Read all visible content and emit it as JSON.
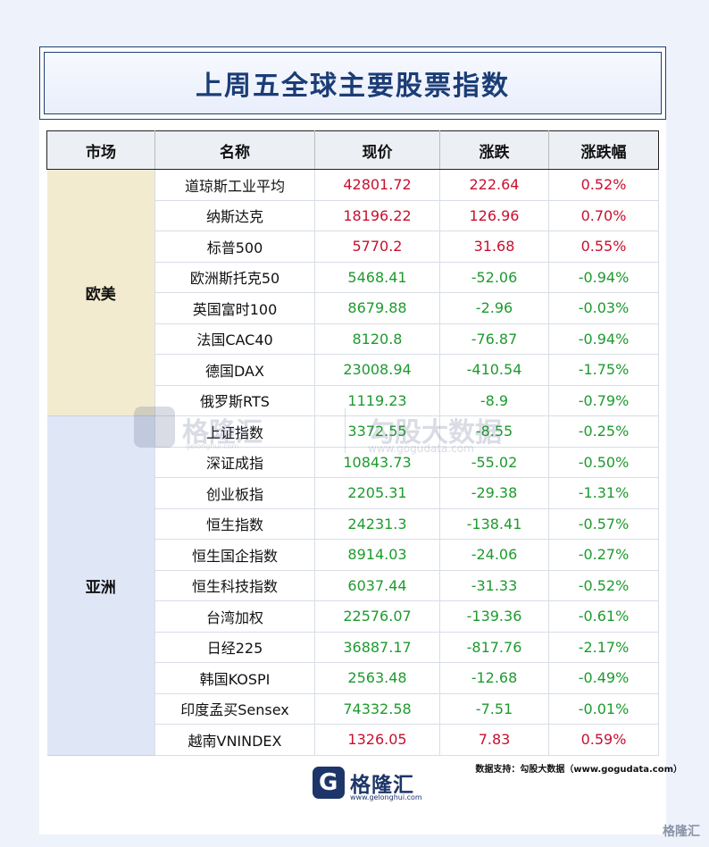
{
  "title": "上周五全球主要股票指数",
  "headers": [
    "市场",
    "名称",
    "现价",
    "涨跌",
    "涨跌幅"
  ],
  "regions": [
    {
      "name": "欧美",
      "color": "#f3ebcf",
      "rows": [
        {
          "name": "道琼斯工业平均",
          "price": "42801.72",
          "change": "222.64",
          "pct": "0.52%",
          "dir": "up"
        },
        {
          "name": "纳斯达克",
          "price": "18196.22",
          "change": "126.96",
          "pct": "0.70%",
          "dir": "up"
        },
        {
          "name": "标普500",
          "price": "5770.2",
          "change": "31.68",
          "pct": "0.55%",
          "dir": "up"
        },
        {
          "name": "欧洲斯托克50",
          "price": "5468.41",
          "change": "-52.06",
          "pct": "-0.94%",
          "dir": "down"
        },
        {
          "name": "英国富时100",
          "price": "8679.88",
          "change": "-2.96",
          "pct": "-0.03%",
          "dir": "down"
        },
        {
          "name": "法国CAC40",
          "price": "8120.8",
          "change": "-76.87",
          "pct": "-0.94%",
          "dir": "down"
        },
        {
          "name": "德国DAX",
          "price": "23008.94",
          "change": "-410.54",
          "pct": "-1.75%",
          "dir": "down"
        },
        {
          "name": "俄罗斯RTS",
          "price": "1119.23",
          "change": "-8.9",
          "pct": "-0.79%",
          "dir": "down"
        }
      ]
    },
    {
      "name": "亚洲",
      "color": "#dfe6f6",
      "rows": [
        {
          "name": "上证指数",
          "price": "3372.55",
          "change": "-8.55",
          "pct": "-0.25%",
          "dir": "down"
        },
        {
          "name": "深证成指",
          "price": "10843.73",
          "change": "-55.02",
          "pct": "-0.50%",
          "dir": "down"
        },
        {
          "name": "创业板指",
          "price": "2205.31",
          "change": "-29.38",
          "pct": "-1.31%",
          "dir": "down"
        },
        {
          "name": "恒生指数",
          "price": "24231.3",
          "change": "-138.41",
          "pct": "-0.57%",
          "dir": "down"
        },
        {
          "name": "恒生国企指数",
          "price": "8914.03",
          "change": "-24.06",
          "pct": "-0.27%",
          "dir": "down"
        },
        {
          "name": "恒生科技指数",
          "price": "6037.44",
          "change": "-31.33",
          "pct": "-0.52%",
          "dir": "down"
        },
        {
          "name": "台湾加权",
          "price": "22576.07",
          "change": "-139.36",
          "pct": "-0.61%",
          "dir": "down"
        },
        {
          "name": "日经225",
          "price": "36887.17",
          "change": "-817.76",
          "pct": "-2.17%",
          "dir": "down"
        },
        {
          "name": "韩国KOSPI",
          "price": "2563.48",
          "change": "-12.68",
          "pct": "-0.49%",
          "dir": "down"
        },
        {
          "name": "印度孟买Sensex",
          "price": "74332.58",
          "change": "-7.51",
          "pct": "-0.01%",
          "dir": "down"
        },
        {
          "name": "越南VNINDEX",
          "price": "1326.05",
          "change": "7.83",
          "pct": "0.59%",
          "dir": "up"
        }
      ]
    }
  ],
  "colors": {
    "up": "#c8102e",
    "down": "#1e9a2e",
    "title": "#1b3d76"
  },
  "source": "数据支持：勾股大数据（www.gogudata.com）",
  "logo": {
    "mark": "G",
    "name": "格隆汇",
    "site": "www.gelonghui.com"
  },
  "watermark": {
    "brand": "格隆汇",
    "brand_site": "gelonghui.com",
    "partner": "勾股大数据",
    "partner_site": "www.gogudata.com"
  },
  "corner_mark": "格隆汇"
}
